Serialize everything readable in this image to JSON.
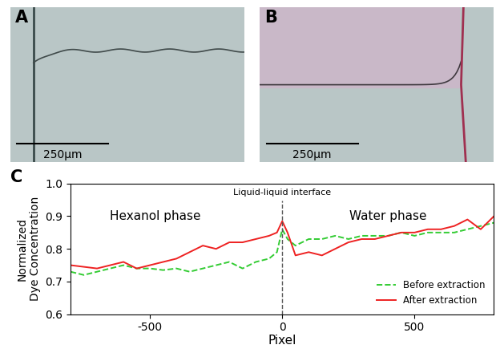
{
  "panels": [
    {
      "label": "A",
      "scale_bar": "250μm"
    },
    {
      "label": "B",
      "scale_bar": "250μm"
    },
    {
      "label": "C"
    }
  ],
  "chart_data": {
    "type": "line",
    "x_label": "Pixel",
    "y_label": "Normalized\nDye Concentration",
    "annotations": [
      "Liquid-liquid interface",
      "Hexanol phase",
      "Water phase"
    ],
    "interface_x": 0,
    "x": [
      -800,
      -750,
      -700,
      -650,
      -600,
      -550,
      -500,
      -450,
      -400,
      -350,
      -300,
      -250,
      -200,
      -150,
      -100,
      -50,
      -20,
      0,
      20,
      50,
      100,
      150,
      200,
      250,
      300,
      350,
      400,
      450,
      500,
      550,
      600,
      650,
      700,
      750,
      800
    ],
    "series": [
      {
        "name": "Before extraction",
        "color": "#33cc33",
        "line_style": "dashed",
        "values": [
          0.73,
          0.72,
          0.73,
          0.74,
          0.75,
          0.74,
          0.74,
          0.735,
          0.74,
          0.73,
          0.74,
          0.75,
          0.76,
          0.74,
          0.76,
          0.77,
          0.79,
          0.86,
          0.83,
          0.81,
          0.83,
          0.83,
          0.84,
          0.83,
          0.84,
          0.84,
          0.84,
          0.85,
          0.84,
          0.85,
          0.85,
          0.85,
          0.86,
          0.87,
          0.88
        ]
      },
      {
        "name": "After extraction",
        "color": "#ee2222",
        "line_style": "solid",
        "values": [
          0.75,
          0.745,
          0.74,
          0.75,
          0.76,
          0.74,
          0.75,
          0.76,
          0.77,
          0.79,
          0.81,
          0.8,
          0.82,
          0.82,
          0.83,
          0.84,
          0.85,
          0.885,
          0.85,
          0.78,
          0.79,
          0.78,
          0.8,
          0.82,
          0.83,
          0.83,
          0.84,
          0.85,
          0.85,
          0.86,
          0.86,
          0.87,
          0.89,
          0.86,
          0.9
        ]
      }
    ],
    "xlim": [
      -800,
      800
    ],
    "xticks": [
      -500,
      0,
      500
    ],
    "ylim": [
      0.6,
      1.0
    ],
    "yticks": [
      0.6,
      0.7,
      0.8,
      0.9,
      1.0
    ],
    "legend": "lower right",
    "grid": false
  }
}
